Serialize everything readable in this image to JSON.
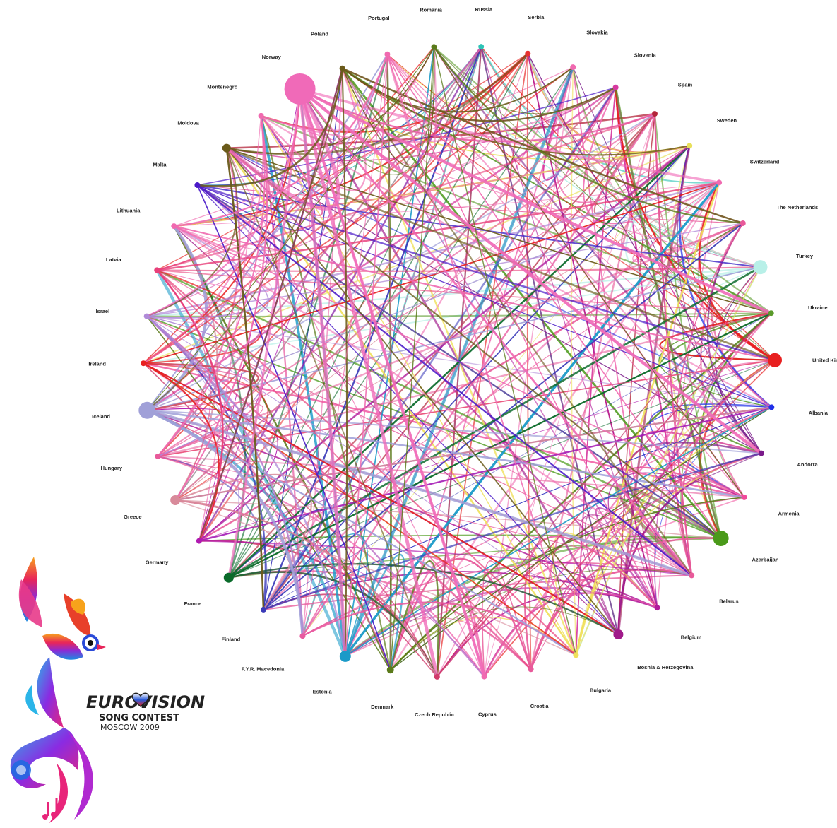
{
  "countries": [
    {
      "name": "Russia",
      "color": "#2ec4b6"
    },
    {
      "name": "Serbia",
      "color": "#e83030"
    },
    {
      "name": "Slovakia",
      "color": "#f06ab0"
    },
    {
      "name": "Slovenia",
      "color": "#d63aa0"
    },
    {
      "name": "Spain",
      "color": "#b3243a"
    },
    {
      "name": "Sweden",
      "color": "#e8e05a"
    },
    {
      "name": "Switzerland",
      "color": "#f06ab0"
    },
    {
      "name": "The Netherlands",
      "color": "#e85a9a"
    },
    {
      "name": "Turkey",
      "color": "#b8f0e8"
    },
    {
      "name": "Ukraine",
      "color": "#5a9a2a"
    },
    {
      "name": "United Kingdom",
      "color": "#e82020"
    },
    {
      "name": "Albania",
      "color": "#2030e8"
    },
    {
      "name": "Andorra",
      "color": "#7a1a8a"
    },
    {
      "name": "Armenia",
      "color": "#f04a9a"
    },
    {
      "name": "Azerbaijan",
      "color": "#4a9a1a"
    },
    {
      "name": "Belarus",
      "color": "#e85a9a"
    },
    {
      "name": "Belgium",
      "color": "#b01a9a"
    },
    {
      "name": "Bosnia & Herzegovina",
      "color": "#a01a8a"
    },
    {
      "name": "Bulgaria",
      "color": "#f0e05a"
    },
    {
      "name": "Croatia",
      "color": "#e85a9a"
    },
    {
      "name": "Cyprus",
      "color": "#f06ab0"
    },
    {
      "name": "Czech Republic",
      "color": "#d03a6a"
    },
    {
      "name": "Denmark",
      "color": "#5a7a1a"
    },
    {
      "name": "Estonia",
      "color": "#1a9ac8"
    },
    {
      "name": "F.Y.R. Macedonia",
      "color": "#e85aa0"
    },
    {
      "name": "Finland",
      "color": "#3a3ab8"
    },
    {
      "name": "France",
      "color": "#0a6a2a"
    },
    {
      "name": "Germany",
      "color": "#b01ab0"
    },
    {
      "name": "Greece",
      "color": "#d88a9a"
    },
    {
      "name": "Hungary",
      "color": "#e85a9a"
    },
    {
      "name": "Iceland",
      "color": "#a0a0d8"
    },
    {
      "name": "Ireland",
      "color": "#e82020"
    },
    {
      "name": "Israel",
      "color": "#b08ad8"
    },
    {
      "name": "Latvia",
      "color": "#e8407a"
    },
    {
      "name": "Lithuania",
      "color": "#f06ab0"
    },
    {
      "name": "Malta",
      "color": "#4a1ac8"
    },
    {
      "name": "Moldova",
      "color": "#6a5a1a"
    },
    {
      "name": "Montenegro",
      "color": "#f06ab0"
    },
    {
      "name": "Norway",
      "color": "#f06ab8"
    },
    {
      "name": "Poland",
      "color": "#6a5a1a"
    },
    {
      "name": "Portugal",
      "color": "#f06ab0"
    },
    {
      "name": "Romania",
      "color": "#5a7a1a"
    }
  ],
  "logo": {
    "wordmark": "EUROVISION",
    "line2": "SONG CONTEST",
    "line3": "MOSCOW 2009"
  }
}
